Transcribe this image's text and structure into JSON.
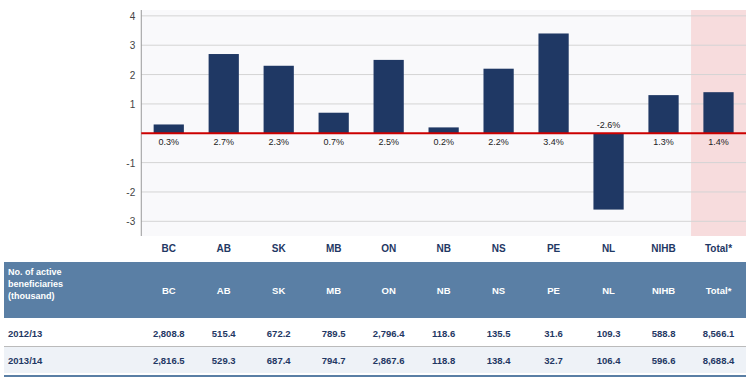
{
  "chart_data": {
    "type": "bar",
    "categories": [
      "BC",
      "AB",
      "SK",
      "MB",
      "ON",
      "NB",
      "NS",
      "PE",
      "NL",
      "NIHB",
      "Total*"
    ],
    "values": [
      0.3,
      2.7,
      2.3,
      0.7,
      2.5,
      0.2,
      2.2,
      3.4,
      -2.6,
      1.3,
      1.4
    ],
    "value_labels": [
      "0.3%",
      "2.7%",
      "2.3%",
      "0.7%",
      "2.5%",
      "0.2%",
      "2.2%",
      "3.4%",
      "-2.6%",
      "1.3%",
      "1.4%"
    ],
    "data_labels": true,
    "color": "#1f3864",
    "ylim": [
      -3.5,
      4.2
    ],
    "yticks": [
      -3,
      -2,
      -1,
      1,
      2,
      3,
      4
    ],
    "grid": true,
    "table": {
      "title": "No. of active\nbeneficiaries\n(thousand)",
      "columns": [
        "BC",
        "AB",
        "SK",
        "MB",
        "ON",
        "NB",
        "NS",
        "PE",
        "NL",
        "NIHB",
        "Total*"
      ],
      "series": [
        {
          "name": "2012/13",
          "values": [
            2808.8,
            515.4,
            672.2,
            789.5,
            2796.4,
            118.6,
            135.5,
            31.6,
            109.3,
            588.8,
            8566.1
          ],
          "value_labels": [
            "2,808.8",
            "515.4",
            "672.2",
            "789.5",
            "2,796.4",
            "118.6",
            "135.5",
            "31.6",
            "109.3",
            "588.8",
            "8,566.1"
          ]
        },
        {
          "name": "2013/14",
          "values": [
            2816.5,
            529.3,
            687.4,
            794.7,
            2867.6,
            118.8,
            138.4,
            32.7,
            106.4,
            596.6,
            8688.4
          ],
          "value_labels": [
            "2,816.5",
            "529.3",
            "687.4",
            "794.7",
            "2,867.6",
            "118.8",
            "138.4",
            "32.7",
            "106.4",
            "596.6",
            "8,688.4"
          ]
        }
      ]
    }
  }
}
